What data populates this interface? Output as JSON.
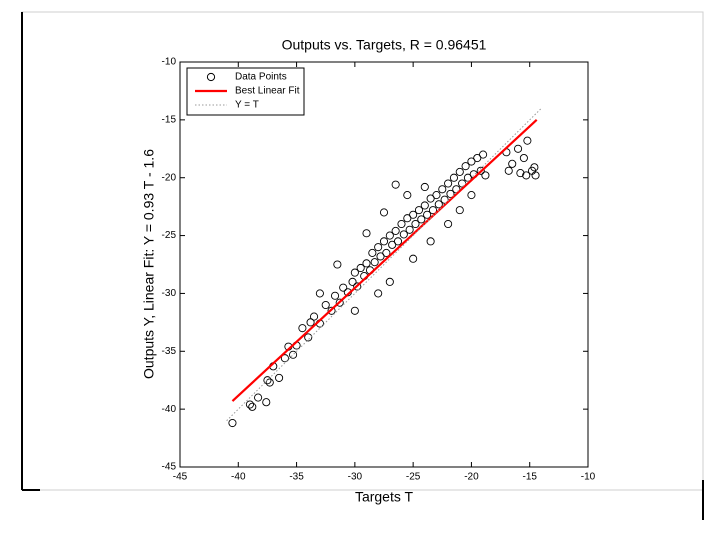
{
  "chart_data": {
    "type": "scatter",
    "title": "Outputs vs. Targets, R = 0.96451",
    "x_label": "Targets T",
    "y_label": "Outputs Y, Linear Fit: Y = 0.93 T - 1.6",
    "xlim": [
      -45,
      -10
    ],
    "ylim": [
      -45,
      -10
    ],
    "xticks": [
      -45,
      -40,
      -35,
      -30,
      -25,
      -20,
      -15,
      -10
    ],
    "yticks": [
      -45,
      -40,
      -35,
      -30,
      -25,
      -20,
      -15,
      -10
    ],
    "grid": false,
    "legend": "upper left",
    "series": [
      {
        "name": "Data Points",
        "color": "#000000",
        "marker": "o",
        "x": [
          -40.5,
          -39,
          -38.8,
          -38.3,
          -37.6,
          -37.5,
          -37.3,
          -37,
          -36.5,
          -36,
          -35.7,
          -35.3,
          -35,
          -34.5,
          -34,
          -33.8,
          -33.5,
          -33,
          -32.5,
          -32,
          -31.7,
          -31.3,
          -31,
          -30.6,
          -30.2,
          -30,
          -29.8,
          -29.5,
          -29.2,
          -29,
          -28.7,
          -28.5,
          -28.3,
          -28,
          -27.8,
          -27.5,
          -27.3,
          -27,
          -26.8,
          -26.5,
          -26.3,
          -26,
          -25.8,
          -25.5,
          -25.3,
          -25,
          -24.8,
          -24.5,
          -24.3,
          -24,
          -23.8,
          -23.5,
          -23.3,
          -23,
          -22.8,
          -22.5,
          -22.3,
          -22,
          -21.8,
          -21.5,
          -21.3,
          -21,
          -20.8,
          -20.5,
          -20.3,
          -20,
          -19.8,
          -19.5,
          -19.2,
          -19,
          -18.8,
          -26.5,
          -25.5,
          -24,
          -27.5,
          -29,
          -31.5,
          -33,
          -27,
          -25,
          -23.5,
          -22,
          -21,
          -20,
          -30,
          -28,
          -17,
          -16.5,
          -16,
          -15.5,
          -15.2,
          -15.8,
          -15.3,
          -14.8,
          -14.5,
          -16.8,
          -14.6
        ],
        "values": [
          -41.2,
          -39.6,
          -39.8,
          -39,
          -39.4,
          -37.5,
          -37.7,
          -36.3,
          -37.3,
          -35.6,
          -34.6,
          -35.3,
          -34.5,
          -33,
          -33.8,
          -32.5,
          -32,
          -32.6,
          -31,
          -31.5,
          -30.2,
          -30.8,
          -29.5,
          -29.9,
          -29,
          -28.2,
          -29.4,
          -27.8,
          -28.5,
          -27.4,
          -28,
          -26.5,
          -27.3,
          -26,
          -26.8,
          -25.5,
          -26.5,
          -25,
          -25.8,
          -24.6,
          -25.5,
          -24,
          -24.9,
          -23.5,
          -24.5,
          -23.2,
          -24,
          -22.8,
          -23.6,
          -22.4,
          -23.2,
          -21.8,
          -22.8,
          -21.5,
          -22.3,
          -21,
          -21.9,
          -20.5,
          -21.4,
          -20,
          -21,
          -19.5,
          -20.5,
          -19,
          -20,
          -18.6,
          -19.7,
          -18.3,
          -19.4,
          -18,
          -19.8,
          -20.6,
          -21.5,
          -20.8,
          -23,
          -24.8,
          -27.5,
          -30,
          -29,
          -27,
          -25.5,
          -24,
          -22.8,
          -21.5,
          -31.5,
          -30,
          -17.8,
          -18.8,
          -17.5,
          -18.3,
          -16.8,
          -19.6,
          -19.8,
          -19.4,
          -19.8,
          -19.4,
          -19.1
        ]
      },
      {
        "name": "Best Linear Fit",
        "color": "#ff0000",
        "line": "solid",
        "x": [
          -40.5,
          -14.4
        ],
        "values": [
          -39.3,
          -15.0
        ]
      },
      {
        "name": "Y = T",
        "color": "#999999",
        "line": "dotted",
        "x": [
          -41,
          -14
        ],
        "values": [
          -41,
          -14
        ]
      }
    ]
  }
}
